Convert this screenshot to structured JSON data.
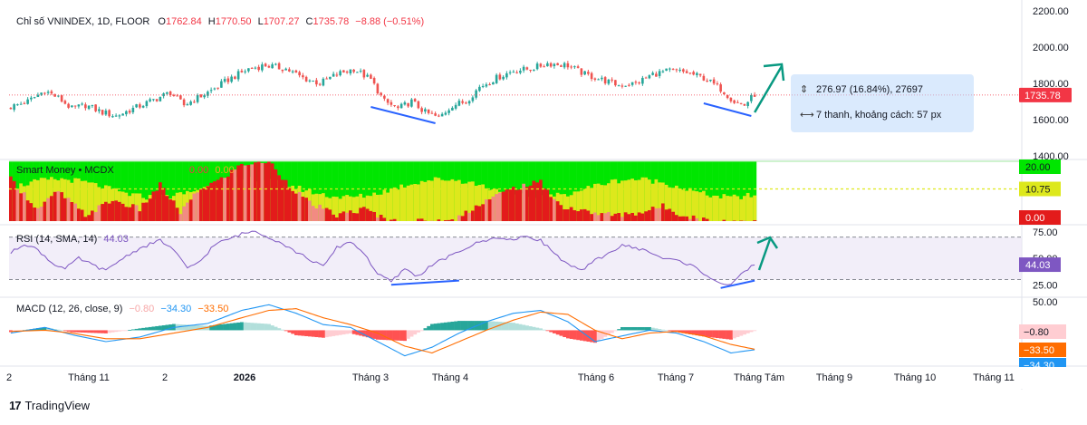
{
  "header": {
    "symbol_title": "Chỉ số VNINDEX, 1D, FLOOR",
    "open_label": "O",
    "open": "1762.84",
    "high_label": "H",
    "high": "1770.50",
    "low_label": "L",
    "low": "1707.27",
    "close_label": "C",
    "close": "1735.78",
    "change": "−8.88 (−0.51%)"
  },
  "measure_tool": {
    "range_text": "276.97 (16.84%), 27697",
    "bars_text": "7 thanh, khoảng cách: 57 px"
  },
  "brand": {
    "name": "TradingView",
    "icon": "tradingview-logo-icon"
  },
  "colors": {
    "up": "#26a69a",
    "down": "#ef5350",
    "price_tag": "#f23645",
    "rsi": "#7e57c2",
    "macd": "#2196f3",
    "signal": "#ff6d00",
    "annotation_arrow": "#089981",
    "annotation_line": "#2962ff"
  },
  "chart_data": [
    {
      "type": "candlestick",
      "name": "Chỉ số VNINDEX, 1D, FLOOR",
      "x_tick_labels": [
        "2",
        "Tháng 11",
        "2",
        "2026",
        "Tháng 3",
        "Tháng 4",
        "Tháng 6",
        "Tháng 7",
        "Tháng Tám",
        "Tháng 9",
        "Tháng 10",
        "Tháng 11"
      ],
      "y_tick_labels": [
        "2200.00",
        "2000.00",
        "1800.00",
        "1600.00",
        "1400.00"
      ],
      "ylim": [
        1400,
        2200
      ],
      "last_price": 1735.78,
      "last_price_label": "1735.78",
      "approx_close_path": [
        {
          "x": 0,
          "y": 1670
        },
        {
          "x": 5,
          "y": 1700
        },
        {
          "x": 10,
          "y": 1760
        },
        {
          "x": 14,
          "y": 1720
        },
        {
          "x": 18,
          "y": 1660
        },
        {
          "x": 22,
          "y": 1680
        },
        {
          "x": 27,
          "y": 1640
        },
        {
          "x": 31,
          "y": 1620
        },
        {
          "x": 36,
          "y": 1660
        },
        {
          "x": 41,
          "y": 1700
        },
        {
          "x": 47,
          "y": 1750
        },
        {
          "x": 51,
          "y": 1680
        },
        {
          "x": 55,
          "y": 1720
        },
        {
          "x": 59,
          "y": 1760
        },
        {
          "x": 64,
          "y": 1820
        },
        {
          "x": 70,
          "y": 1880
        },
        {
          "x": 75,
          "y": 1900
        },
        {
          "x": 81,
          "y": 1880
        },
        {
          "x": 86,
          "y": 1830
        },
        {
          "x": 91,
          "y": 1800
        },
        {
          "x": 96,
          "y": 1850
        },
        {
          "x": 101,
          "y": 1880
        },
        {
          "x": 106,
          "y": 1820
        },
        {
          "x": 110,
          "y": 1700
        },
        {
          "x": 114,
          "y": 1660
        },
        {
          "x": 118,
          "y": 1700
        },
        {
          "x": 122,
          "y": 1640
        },
        {
          "x": 126,
          "y": 1610
        },
        {
          "x": 130,
          "y": 1680
        },
        {
          "x": 134,
          "y": 1700
        },
        {
          "x": 138,
          "y": 1780
        },
        {
          "x": 143,
          "y": 1830
        },
        {
          "x": 148,
          "y": 1870
        },
        {
          "x": 153,
          "y": 1880
        },
        {
          "x": 158,
          "y": 1910
        },
        {
          "x": 164,
          "y": 1900
        },
        {
          "x": 169,
          "y": 1850
        },
        {
          "x": 174,
          "y": 1820
        },
        {
          "x": 179,
          "y": 1790
        },
        {
          "x": 184,
          "y": 1800
        },
        {
          "x": 189,
          "y": 1850
        },
        {
          "x": 194,
          "y": 1870
        },
        {
          "x": 199,
          "y": 1860
        },
        {
          "x": 204,
          "y": 1830
        },
        {
          "x": 209,
          "y": 1770
        },
        {
          "x": 213,
          "y": 1700
        },
        {
          "x": 216,
          "y": 1680
        },
        {
          "x": 219,
          "y": 1740
        }
      ],
      "annotations": [
        {
          "type": "trend_line",
          "from": {
            "x": 106,
            "y": 1670
          },
          "to": {
            "x": 125,
            "y": 1580
          }
        },
        {
          "type": "trend_line",
          "from": {
            "x": 204,
            "y": 1690
          },
          "to": {
            "x": 218,
            "y": 1620
          }
        },
        {
          "type": "arrow",
          "direction": "up"
        }
      ]
    },
    {
      "type": "bar",
      "name": "Smart Money • MCDX",
      "legend_values": [
        "0.00",
        "0.00"
      ],
      "y_tick_labels": [
        "20.00",
        "10.75",
        "0.00"
      ],
      "ylim": [
        0,
        20
      ],
      "approx_red_levels": [
        {
          "x": 0,
          "y": 14
        },
        {
          "x": 8,
          "y": 4
        },
        {
          "x": 14,
          "y": 10
        },
        {
          "x": 22,
          "y": 2
        },
        {
          "x": 30,
          "y": 7
        },
        {
          "x": 38,
          "y": 4
        },
        {
          "x": 44,
          "y": 12
        },
        {
          "x": 50,
          "y": 3
        },
        {
          "x": 56,
          "y": 11
        },
        {
          "x": 62,
          "y": 14
        },
        {
          "x": 68,
          "y": 19
        },
        {
          "x": 76,
          "y": 20
        },
        {
          "x": 82,
          "y": 12
        },
        {
          "x": 88,
          "y": 6
        },
        {
          "x": 96,
          "y": 2
        },
        {
          "x": 104,
          "y": 4
        },
        {
          "x": 112,
          "y": 0
        },
        {
          "x": 120,
          "y": 0
        },
        {
          "x": 130,
          "y": 0
        },
        {
          "x": 134,
          "y": 3
        },
        {
          "x": 140,
          "y": 7
        },
        {
          "x": 148,
          "y": 11
        },
        {
          "x": 156,
          "y": 13
        },
        {
          "x": 162,
          "y": 5
        },
        {
          "x": 170,
          "y": 3
        },
        {
          "x": 178,
          "y": 2
        },
        {
          "x": 186,
          "y": 3
        },
        {
          "x": 192,
          "y": 5
        },
        {
          "x": 198,
          "y": 2
        },
        {
          "x": 206,
          "y": 0
        },
        {
          "x": 219,
          "y": 0
        }
      ]
    },
    {
      "type": "line",
      "name": "RSI (14, SMA, 14)",
      "legend_value": "44.03",
      "y_tick_labels": [
        "75.00",
        "50.00",
        "25.00"
      ],
      "ylim": [
        15,
        80
      ],
      "last_value": 44.03,
      "last_value_label": "44.03",
      "series": [
        {
          "name": "RSI",
          "points": [
            {
              "x": 0,
              "y": 55
            },
            {
              "x": 4,
              "y": 64
            },
            {
              "x": 8,
              "y": 58
            },
            {
              "x": 12,
              "y": 46
            },
            {
              "x": 16,
              "y": 40
            },
            {
              "x": 20,
              "y": 50
            },
            {
              "x": 24,
              "y": 44
            },
            {
              "x": 28,
              "y": 38
            },
            {
              "x": 32,
              "y": 48
            },
            {
              "x": 36,
              "y": 56
            },
            {
              "x": 40,
              "y": 62
            },
            {
              "x": 44,
              "y": 67
            },
            {
              "x": 48,
              "y": 58
            },
            {
              "x": 52,
              "y": 40
            },
            {
              "x": 56,
              "y": 48
            },
            {
              "x": 60,
              "y": 63
            },
            {
              "x": 64,
              "y": 68
            },
            {
              "x": 68,
              "y": 73
            },
            {
              "x": 72,
              "y": 76
            },
            {
              "x": 76,
              "y": 70
            },
            {
              "x": 80,
              "y": 64
            },
            {
              "x": 84,
              "y": 56
            },
            {
              "x": 88,
              "y": 49
            },
            {
              "x": 92,
              "y": 42
            },
            {
              "x": 96,
              "y": 60
            },
            {
              "x": 100,
              "y": 66
            },
            {
              "x": 104,
              "y": 55
            },
            {
              "x": 108,
              "y": 35
            },
            {
              "x": 112,
              "y": 28
            },
            {
              "x": 116,
              "y": 40
            },
            {
              "x": 120,
              "y": 33
            },
            {
              "x": 124,
              "y": 44
            },
            {
              "x": 128,
              "y": 50
            },
            {
              "x": 132,
              "y": 56
            },
            {
              "x": 136,
              "y": 63
            },
            {
              "x": 140,
              "y": 67
            },
            {
              "x": 144,
              "y": 70
            },
            {
              "x": 148,
              "y": 67
            },
            {
              "x": 152,
              "y": 71
            },
            {
              "x": 156,
              "y": 67
            },
            {
              "x": 160,
              "y": 55
            },
            {
              "x": 164,
              "y": 44
            },
            {
              "x": 168,
              "y": 38
            },
            {
              "x": 172,
              "y": 48
            },
            {
              "x": 176,
              "y": 55
            },
            {
              "x": 180,
              "y": 62
            },
            {
              "x": 184,
              "y": 60
            },
            {
              "x": 188,
              "y": 56
            },
            {
              "x": 192,
              "y": 50
            },
            {
              "x": 196,
              "y": 48
            },
            {
              "x": 200,
              "y": 44
            },
            {
              "x": 204,
              "y": 36
            },
            {
              "x": 208,
              "y": 28
            },
            {
              "x": 212,
              "y": 24
            },
            {
              "x": 216,
              "y": 38
            },
            {
              "x": 219,
              "y": 44
            }
          ]
        }
      ],
      "annotations": [
        {
          "type": "trend_line",
          "from": {
            "x": 112,
            "y": 25
          },
          "to": {
            "x": 132,
            "y": 29
          }
        },
        {
          "type": "trend_line",
          "from": {
            "x": 209,
            "y": 22
          },
          "to": {
            "x": 219,
            "y": 29
          }
        },
        {
          "type": "arrow",
          "direction": "up"
        }
      ]
    },
    {
      "type": "bar",
      "name": "MACD (12, 26, close, 9)",
      "legend_values": [
        "−0.80",
        "−34.30",
        "−33.50"
      ],
      "y_tick_labels": [
        "50.00",
        "−0.80",
        "−33.50",
        "−34.30"
      ],
      "ylim": [
        -60,
        55
      ],
      "series": [
        {
          "name": "MACD",
          "points": [
            {
              "x": 0,
              "y": -5
            },
            {
              "x": 10,
              "y": 5
            },
            {
              "x": 18,
              "y": -8
            },
            {
              "x": 28,
              "y": -20
            },
            {
              "x": 38,
              "y": -12
            },
            {
              "x": 48,
              "y": 5
            },
            {
              "x": 58,
              "y": 12
            },
            {
              "x": 68,
              "y": 35
            },
            {
              "x": 76,
              "y": 45
            },
            {
              "x": 84,
              "y": 30
            },
            {
              "x": 92,
              "y": 10
            },
            {
              "x": 100,
              "y": 5
            },
            {
              "x": 108,
              "y": -20
            },
            {
              "x": 116,
              "y": -45
            },
            {
              "x": 124,
              "y": -30
            },
            {
              "x": 132,
              "y": -5
            },
            {
              "x": 140,
              "y": 15
            },
            {
              "x": 148,
              "y": 30
            },
            {
              "x": 156,
              "y": 35
            },
            {
              "x": 164,
              "y": 15
            },
            {
              "x": 172,
              "y": -20
            },
            {
              "x": 180,
              "y": -10
            },
            {
              "x": 188,
              "y": 0
            },
            {
              "x": 196,
              "y": -5
            },
            {
              "x": 204,
              "y": -20
            },
            {
              "x": 212,
              "y": -40
            },
            {
              "x": 219,
              "y": -34.3
            }
          ]
        },
        {
          "name": "Signal",
          "points": [
            {
              "x": 0,
              "y": -2
            },
            {
              "x": 10,
              "y": 0
            },
            {
              "x": 18,
              "y": -5
            },
            {
              "x": 28,
              "y": -15
            },
            {
              "x": 38,
              "y": -15
            },
            {
              "x": 48,
              "y": -5
            },
            {
              "x": 58,
              "y": 5
            },
            {
              "x": 68,
              "y": 22
            },
            {
              "x": 76,
              "y": 35
            },
            {
              "x": 84,
              "y": 38
            },
            {
              "x": 92,
              "y": 22
            },
            {
              "x": 100,
              "y": 10
            },
            {
              "x": 108,
              "y": -5
            },
            {
              "x": 116,
              "y": -28
            },
            {
              "x": 124,
              "y": -40
            },
            {
              "x": 132,
              "y": -20
            },
            {
              "x": 140,
              "y": 0
            },
            {
              "x": 148,
              "y": 18
            },
            {
              "x": 156,
              "y": 32
            },
            {
              "x": 164,
              "y": 28
            },
            {
              "x": 172,
              "y": 0
            },
            {
              "x": 180,
              "y": -15
            },
            {
              "x": 188,
              "y": -5
            },
            {
              "x": 196,
              "y": -2
            },
            {
              "x": 204,
              "y": -10
            },
            {
              "x": 212,
              "y": -25
            },
            {
              "x": 219,
              "y": -33.5
            }
          ]
        }
      ],
      "histogram_last": -0.8
    }
  ]
}
